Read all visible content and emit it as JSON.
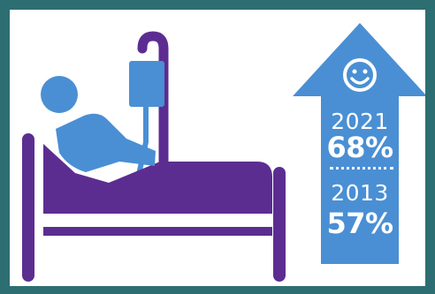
{
  "stats": [
    {
      "year": "2021",
      "value": "68%"
    },
    {
      "year": "2013",
      "value": "57%"
    }
  ],
  "icons": {
    "patient": "patient-in-bed-icon",
    "iv": "iv-drip-icon",
    "face": "smiley-face-icon",
    "arrow": "up-arrow-icon"
  },
  "colors": {
    "frame": "#2d6e72",
    "bed": "#5c2d91",
    "patient": "#4a8fd4",
    "arrow": "#4a8fd4",
    "text": "#ffffff"
  }
}
